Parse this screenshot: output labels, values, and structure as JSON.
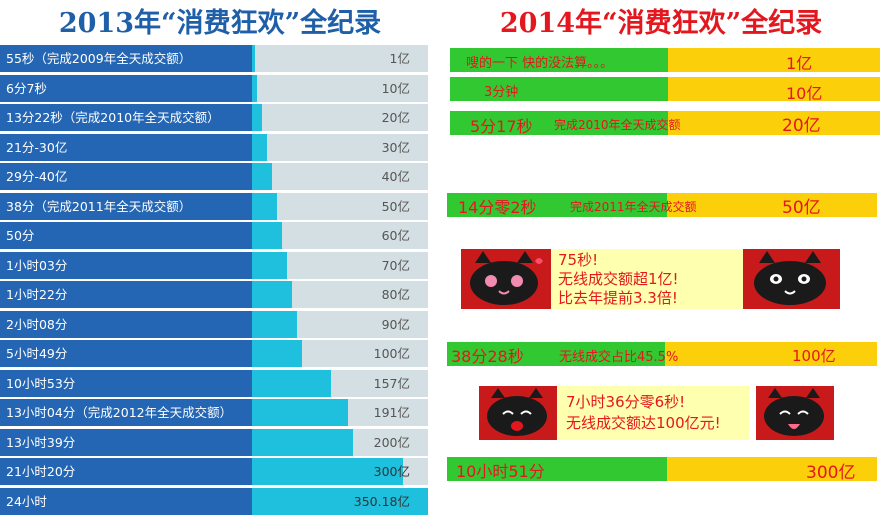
{
  "titles": {
    "left": "2013年“消费狂欢”全纪录",
    "right": "2014年“消费狂欢”全纪录"
  },
  "chart_data": [
    {
      "type": "bar",
      "title": "2013年“消费狂欢”全纪录",
      "orientation": "horizontal",
      "unit": "亿",
      "xlim": [
        0,
        350.18
      ],
      "categories": [
        "55秒（完成2009年全天成交额）",
        "6分7秒",
        "13分22秒（完成2010年全天成交额）",
        "21分-30亿",
        "29分-40亿",
        "38分（完成2011年全天成交额）",
        "50分",
        "1小时03分",
        "1小时22分",
        "2小时08分",
        "5小时49分",
        "10小时53分",
        "13小时04分（完成2012年全天成交额）",
        "13小时39分",
        "21小时20分",
        "24小时"
      ],
      "values": [
        1,
        10,
        20,
        30,
        40,
        50,
        60,
        70,
        80,
        90,
        100,
        157,
        191,
        200,
        300,
        350.18
      ],
      "value_labels": [
        "1亿",
        "10亿",
        "20亿",
        "30亿",
        "40亿",
        "50亿",
        "60亿",
        "70亿",
        "80亿",
        "90亿",
        "100亿",
        "157亿",
        "191亿",
        "200亿",
        "300亿",
        "350.18亿"
      ],
      "colors": {
        "label_bg": "#2466b3",
        "bar": "#1ec0de",
        "track": "#d3dfe3"
      }
    },
    {
      "type": "table",
      "title": "2014年“消费狂欢”全纪录",
      "entries": [
        {
          "time": "嗖的一下 快的没法算。。。",
          "value": "1亿"
        },
        {
          "time": "3分钟",
          "value": "10亿"
        },
        {
          "time": "5分17秒",
          "note": "完成2010年全天成交额",
          "value": "20亿"
        },
        {
          "time": "14分零2秒",
          "note": "完成2011年全天成交额",
          "value": "50亿"
        },
        {
          "time": "75秒!",
          "note": "无线成交额超1亿!",
          "note2": "比去年提前3.3倍!"
        },
        {
          "time": "38分28秒",
          "note": "无线成交占比45.5%",
          "value": "100亿"
        },
        {
          "time": "7小时36分零6秒!",
          "note": "无线成交额达100亿元!"
        },
        {
          "time": "10小时51分",
          "value": "300亿"
        }
      ],
      "colors": {
        "time_bg": "#32c832",
        "value_bg": "#fbcf0a",
        "text": "#e4171e",
        "popup_bg": "#ffffb0",
        "cat_bg": "#c81a1a"
      }
    }
  ]
}
